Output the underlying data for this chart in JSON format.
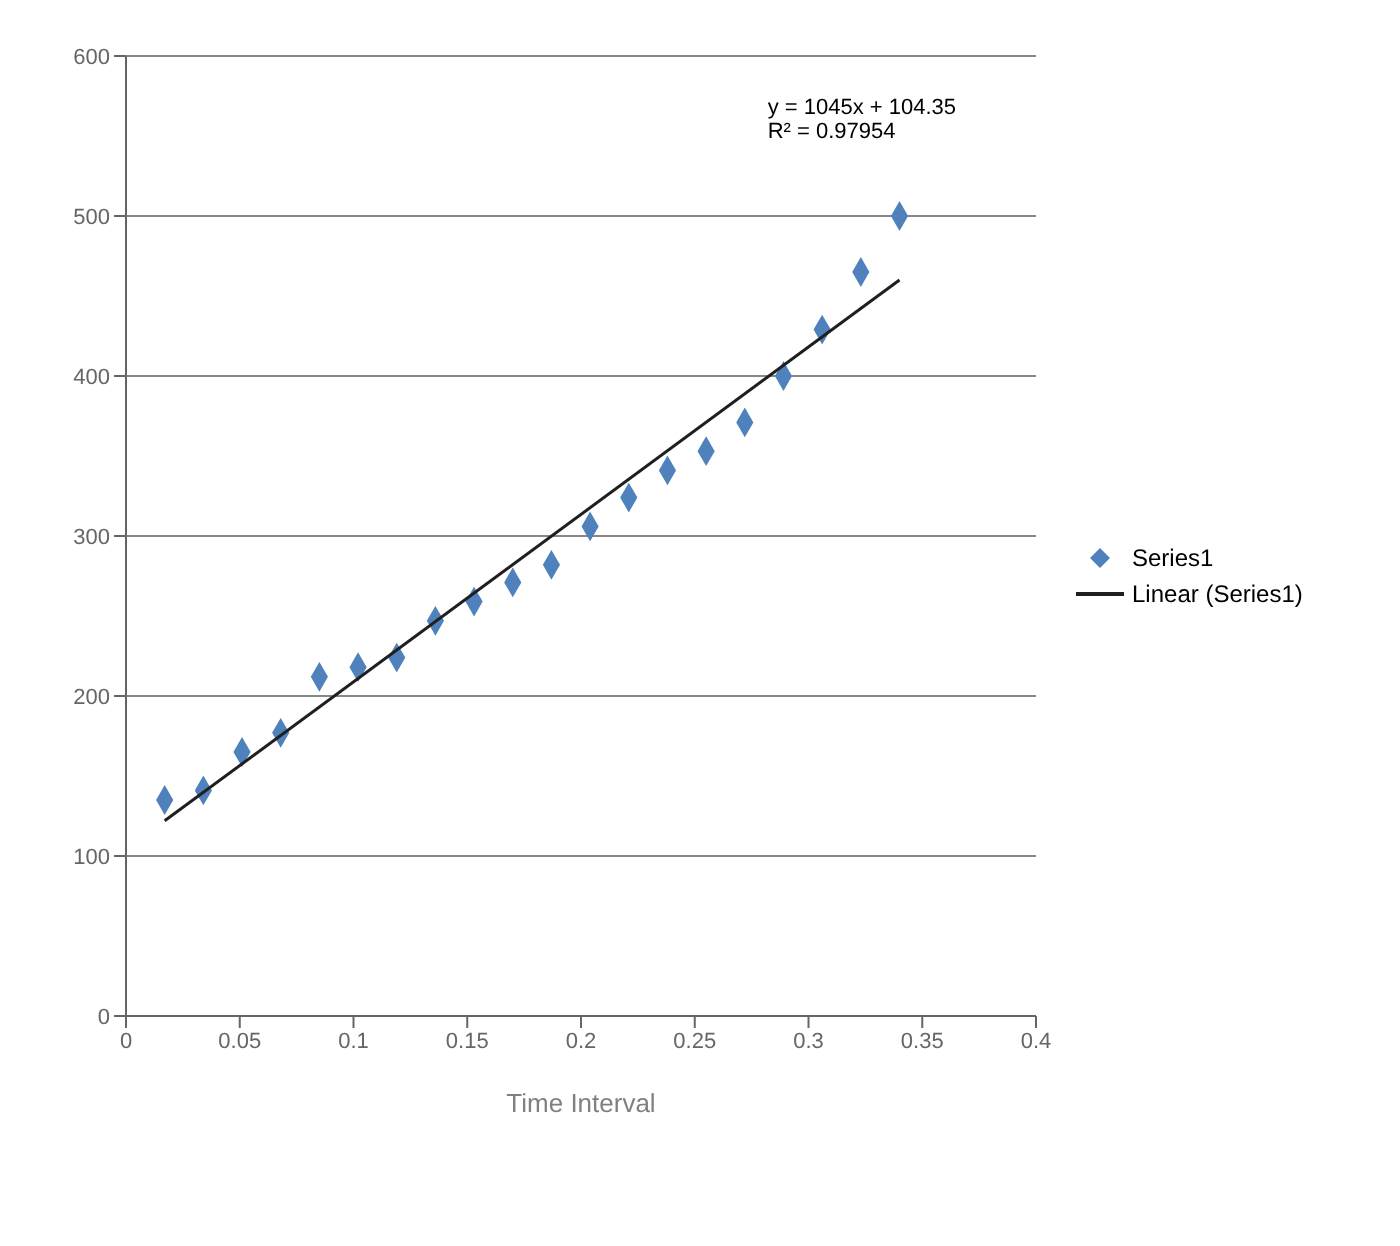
{
  "chart_data": {
    "type": "scatter",
    "xlabel": "Time Interval",
    "series": [
      {
        "name": "Series1",
        "color": "#4f81bd",
        "marker": "diamond",
        "x": [
          0.017,
          0.034,
          0.051,
          0.068,
          0.085,
          0.102,
          0.119,
          0.136,
          0.153,
          0.17,
          0.187,
          0.204,
          0.221,
          0.238,
          0.255,
          0.272,
          0.289,
          0.306,
          0.323,
          0.34
        ],
        "values": [
          135,
          141,
          165,
          177,
          212,
          218,
          224,
          247,
          259,
          271,
          282,
          306,
          324,
          341,
          353,
          371,
          400,
          429,
          465,
          500
        ]
      },
      {
        "name": "Linear (Series1)",
        "type": "line",
        "color": "#1f1f1f",
        "marker": "none",
        "x": [
          0.017,
          0.34
        ],
        "values": [
          122,
          460
        ]
      }
    ],
    "annotations": [
      "y = 1045x + 104.35",
      "R² = 0.97954"
    ],
    "xlim": [
      0,
      0.4
    ],
    "xticks": [
      0,
      0.05,
      0.1,
      0.15,
      0.2,
      0.25,
      0.3,
      0.35,
      0.4
    ],
    "ylim": [
      0,
      600
    ],
    "yticks": [
      0,
      100,
      200,
      300,
      400,
      500,
      600
    ],
    "grid": "y",
    "legend": "right"
  }
}
